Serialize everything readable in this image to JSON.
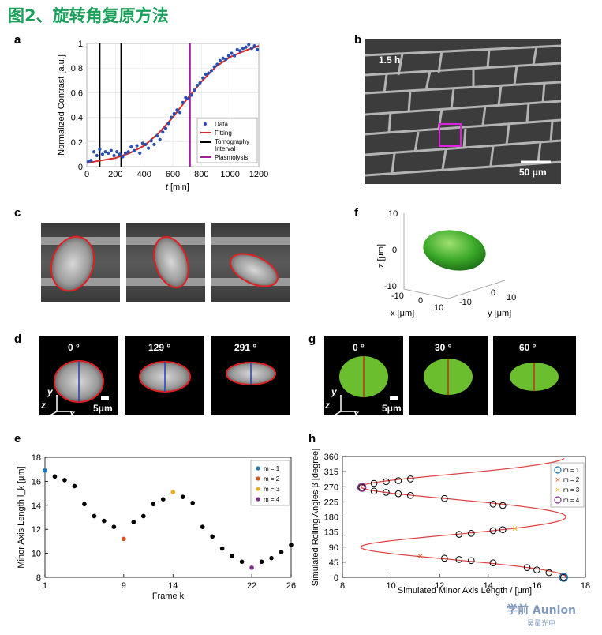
{
  "title": "图2、旋转角复原方法",
  "labels": {
    "a": "a",
    "b": "b",
    "c": "c",
    "d": "d",
    "e": "e",
    "f": "f",
    "g": "g",
    "h": "h"
  },
  "panel_a": {
    "ylabel": "Normalized Contrast [a.u.]",
    "xlabel_t": "t",
    "xlabel_unit": "[min]",
    "xticks": [
      "0",
      "200",
      "400",
      "600",
      "800",
      "1000",
      "1200"
    ],
    "yticks": [
      "0",
      "0.2",
      "0.4",
      "0.6",
      "0.8",
      "1"
    ],
    "legend": [
      "Data",
      "Fitting",
      "Tomography",
      "Interval",
      "Plasmolysis"
    ]
  },
  "panel_b": {
    "time_label": "1.5 h",
    "scale_label": "50 μm"
  },
  "panel_d": {
    "angles": [
      "0 °",
      "129 °",
      "291 °"
    ],
    "scale_label": "5μm",
    "axis_y": "y",
    "axis_z": "z",
    "axis_x": "x"
  },
  "panel_g": {
    "angles": [
      "0 °",
      "30 °",
      "60 °"
    ],
    "scale_label": "5μm",
    "axis_y": "y",
    "axis_z": "z",
    "axis_x": "x"
  },
  "panel_f": {
    "zlabel": "z [μm]",
    "xlabel": "x [μm]",
    "ylabel": "y [μm]",
    "zticks": [
      "10",
      "0",
      "-10"
    ],
    "xticks": [
      "-10",
      "0",
      "10"
    ],
    "yticks": [
      "-10",
      "0",
      "10"
    ]
  },
  "colors": {
    "green_title": "#1aa05a",
    "data_blue": "#2a4fb0",
    "fit_red": "#d42a2a",
    "plasmolysis": "#a020a0",
    "ellipse_red": "#e02020",
    "ellipse_green": "#6bbf2e",
    "blue_line": "#2040c0",
    "m1": "#1f77b4",
    "m2": "#d95319",
    "m3": "#edb120",
    "m4": "#7e2f8e"
  },
  "chart_data": [
    {
      "type": "scatter",
      "panel": "a",
      "ylabel": "Normalized Contrast [a.u.]",
      "xlabel": "t [min]",
      "xlim": [
        0,
        1200
      ],
      "ylim": [
        0,
        1
      ],
      "series": [
        {
          "name": "Data",
          "x": [
            10,
            30,
            50,
            70,
            90,
            110,
            130,
            150,
            170,
            190,
            210,
            230,
            250,
            270,
            290,
            310,
            330,
            350,
            370,
            390,
            410,
            430,
            450,
            470,
            490,
            510,
            530,
            550,
            570,
            590,
            610,
            630,
            650,
            670,
            690,
            710,
            730,
            750,
            770,
            790,
            810,
            830,
            850,
            870,
            890,
            910,
            930,
            950,
            970,
            990,
            1010,
            1030,
            1050,
            1070,
            1090,
            1110,
            1130,
            1150,
            1170,
            1190
          ],
          "y": [
            0.04,
            0.05,
            0.12,
            0.09,
            0.14,
            0.1,
            0.12,
            0.11,
            0.13,
            0.09,
            0.12,
            0.1,
            0.08,
            0.11,
            0.12,
            0.16,
            0.13,
            0.17,
            0.11,
            0.19,
            0.18,
            0.15,
            0.21,
            0.18,
            0.25,
            0.22,
            0.28,
            0.31,
            0.35,
            0.4,
            0.43,
            0.46,
            0.44,
            0.52,
            0.56,
            0.55,
            0.58,
            0.62,
            0.66,
            0.68,
            0.72,
            0.75,
            0.76,
            0.78,
            0.81,
            0.83,
            0.86,
            0.88,
            0.87,
            0.9,
            0.92,
            0.9,
            0.95,
            0.94,
            0.96,
            0.97,
            0.99,
            0.96,
            0.98,
            0.95
          ]
        },
        {
          "name": "Fitting",
          "type": "line",
          "x": [
            0,
            100,
            200,
            300,
            400,
            500,
            600,
            700,
            800,
            900,
            1000,
            1100,
            1200
          ],
          "y": [
            0.03,
            0.05,
            0.07,
            0.11,
            0.17,
            0.27,
            0.4,
            0.55,
            0.69,
            0.81,
            0.89,
            0.94,
            0.98
          ]
        }
      ],
      "vlines": [
        {
          "name": "Tomography Interval",
          "x": [
            90,
            240
          ]
        },
        {
          "name": "Plasmolysis",
          "x": [
            720
          ]
        }
      ]
    },
    {
      "type": "scatter",
      "panel": "e",
      "ylabel": "Minor Axis Length l_k [μm]",
      "xlabel": "Frame k",
      "xticks": [
        "1",
        "9",
        "14",
        "22",
        "26"
      ],
      "yticks": [
        "8",
        "10",
        "12",
        "14",
        "16",
        "18"
      ],
      "xlim": [
        1,
        26
      ],
      "ylim": [
        8,
        18
      ],
      "x": [
        1,
        2,
        3,
        4,
        5,
        6,
        7,
        8,
        9,
        10,
        11,
        12,
        13,
        14,
        15,
        16,
        17,
        18,
        19,
        20,
        21,
        22,
        23,
        24,
        25,
        26
      ],
      "y": [
        16.9,
        16.4,
        16.1,
        15.6,
        14.1,
        13.1,
        12.7,
        12.2,
        11.2,
        12.6,
        13.1,
        14.1,
        14.5,
        15.1,
        14.7,
        14.2,
        12.2,
        11.4,
        10.4,
        9.8,
        9.3,
        8.8,
        9.3,
        9.6,
        10.1,
        10.7
      ],
      "highlights": [
        {
          "name": "m = 1",
          "k": 1
        },
        {
          "name": "m = 2",
          "k": 9
        },
        {
          "name": "m = 3",
          "k": 14
        },
        {
          "name": "m = 4",
          "k": 22
        }
      ],
      "legend": [
        "m = 1",
        "m = 2",
        "m = 3",
        "m = 4"
      ]
    },
    {
      "type": "scatter",
      "panel": "h",
      "ylabel": "Simulated Rolling Angles β [degree]",
      "xlabel": "Simulated Minor Axis Length / [μm]",
      "xticks": [
        "8",
        "10",
        "12",
        "14",
        "16",
        "18"
      ],
      "yticks": [
        "0",
        "45",
        "90",
        "135",
        "180",
        "225",
        "270",
        "315",
        "360"
      ],
      "xlim": [
        8,
        18
      ],
      "ylim": [
        0,
        360
      ],
      "points": [
        [
          17.1,
          0
        ],
        [
          16.5,
          14
        ],
        [
          16.0,
          22
        ],
        [
          15.6,
          29
        ],
        [
          14.2,
          43
        ],
        [
          13.3,
          50
        ],
        [
          12.8,
          53
        ],
        [
          12.2,
          57
        ],
        [
          12.8,
          128
        ],
        [
          13.3,
          131
        ],
        [
          14.2,
          139
        ],
        [
          14.6,
          142
        ],
        [
          14.6,
          214
        ],
        [
          14.2,
          218
        ],
        [
          12.2,
          235
        ],
        [
          10.8,
          244
        ],
        [
          10.3,
          249
        ],
        [
          9.8,
          253
        ],
        [
          9.3,
          257
        ],
        [
          8.8,
          268
        ],
        [
          9.3,
          280
        ],
        [
          9.8,
          285
        ],
        [
          10.3,
          288
        ],
        [
          10.8,
          293
        ]
      ],
      "markers": [
        {
          "name": "m = 1",
          "x": 17.1,
          "y": 0
        },
        {
          "name": "m = 2",
          "x": 11.2,
          "y": 62
        },
        {
          "name": "m = 3",
          "x": 15.1,
          "y": 145
        },
        {
          "name": "m = 4",
          "x": 8.8,
          "y": 268
        }
      ],
      "legend": [
        "m = 1",
        "m = 2",
        "m = 3",
        "m = 4"
      ]
    }
  ],
  "watermark": {
    "line1": "学前 Aunion",
    "line2": "昊量光电"
  }
}
